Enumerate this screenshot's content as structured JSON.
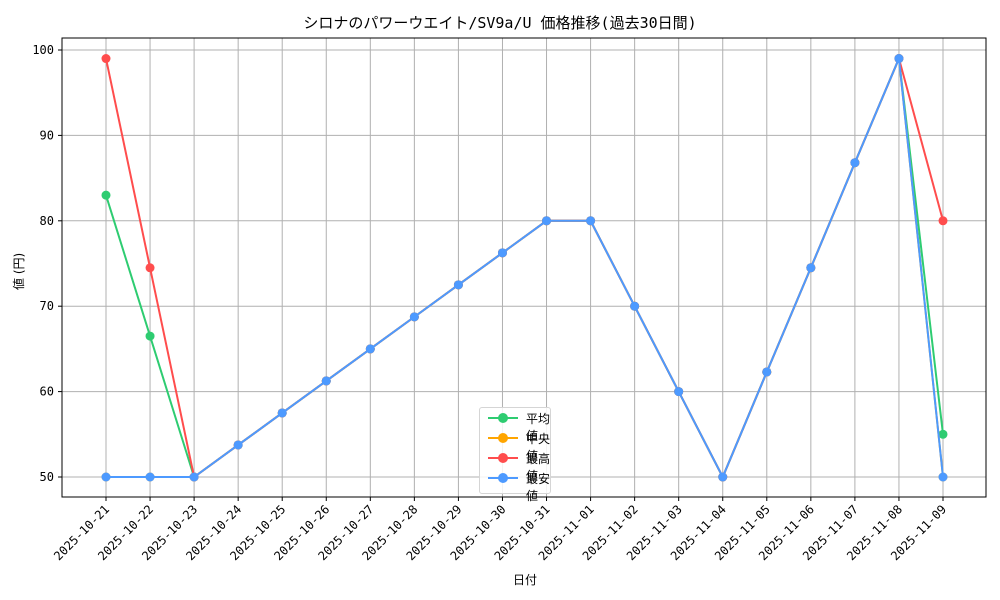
{
  "chart_data": {
    "type": "line",
    "title": "シロナのパワーウエイト/SV9a/U 価格推移(過去30日間)",
    "xlabel": "日付",
    "ylabel": "値 (円)",
    "ylim": [
      47.5,
      101.5
    ],
    "yticks": [
      50,
      60,
      70,
      80,
      90,
      100
    ],
    "grid": true,
    "legend_position": "lower center",
    "categories": [
      "2025-10-21",
      "2025-10-22",
      "2025-10-23",
      "2025-10-24",
      "2025-10-25",
      "2025-10-26",
      "2025-10-27",
      "2025-10-28",
      "2025-10-29",
      "2025-10-30",
      "2025-10-31",
      "2025-11-01",
      "2025-11-02",
      "2025-11-03",
      "2025-11-04",
      "2025-11-05",
      "2025-11-06",
      "2025-11-07",
      "2025-11-08",
      "2025-11-09"
    ],
    "series": [
      {
        "name": "平均値",
        "color": "#2ecc71",
        "values": [
          83,
          66.5,
          50,
          53.75,
          57.5,
          61.25,
          65,
          68.75,
          72.5,
          76.25,
          80,
          80,
          70,
          60,
          50,
          62.3,
          74.5,
          86.8,
          99,
          55
        ]
      },
      {
        "name": "中央値",
        "color": "#ffa500",
        "values": [
          50,
          50,
          50,
          53.75,
          57.5,
          61.25,
          65,
          68.75,
          72.5,
          76.25,
          80,
          80,
          70,
          60,
          50,
          62.3,
          74.5,
          86.8,
          99,
          50
        ]
      },
      {
        "name": "最高値",
        "color": "#ff4d4d",
        "values": [
          99,
          74.5,
          50,
          53.75,
          57.5,
          61.25,
          65,
          68.75,
          72.5,
          76.25,
          80,
          80,
          70,
          60,
          50,
          62.3,
          74.5,
          86.8,
          99,
          80
        ]
      },
      {
        "name": "最安値",
        "color": "#4d9aff",
        "values": [
          50,
          50,
          50,
          53.75,
          57.5,
          61.25,
          65,
          68.75,
          72.5,
          76.25,
          80,
          80,
          70,
          60,
          50,
          62.3,
          74.5,
          86.8,
          99,
          50
        ]
      }
    ]
  }
}
